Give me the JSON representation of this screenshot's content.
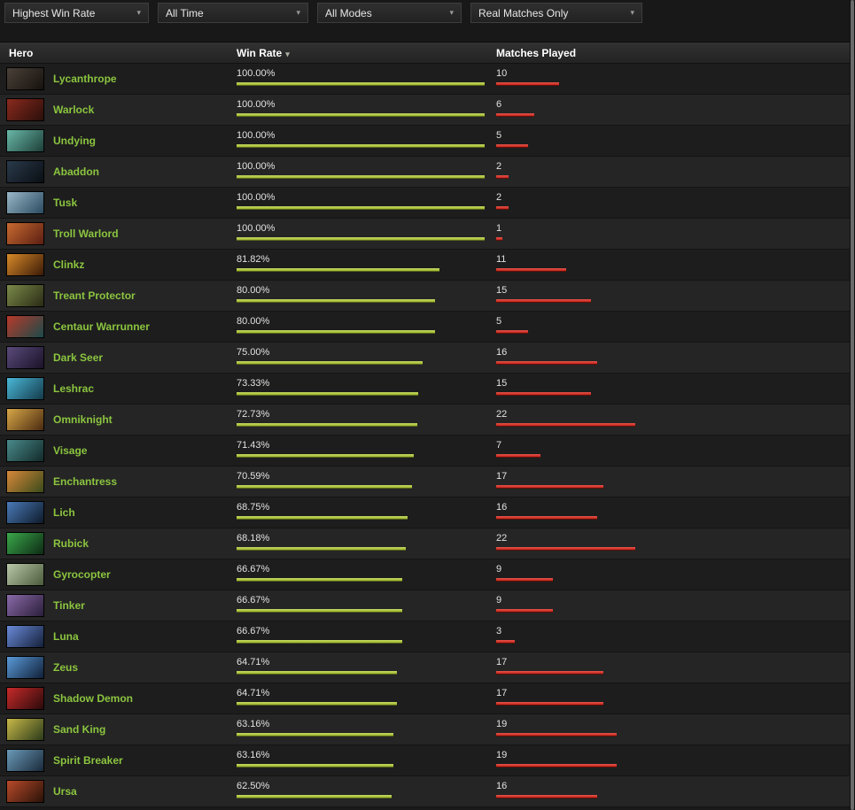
{
  "filters": [
    {
      "label": "Highest Win Rate"
    },
    {
      "label": "All Time"
    },
    {
      "label": "All Modes"
    },
    {
      "label": "Real Matches Only"
    }
  ],
  "table": {
    "columns": {
      "hero": "Hero",
      "win_rate": "Win Rate",
      "matches": "Matches Played"
    },
    "sort_indicator": "▾",
    "sorted_by": "Win Rate",
    "max_matches": 22,
    "rows": [
      {
        "hero": "Lycanthrope",
        "win_rate": "100.00%",
        "win_rate_value": 100.0,
        "matches": 10,
        "icon_colors": [
          "#4a4038",
          "#17120e"
        ]
      },
      {
        "hero": "Warlock",
        "win_rate": "100.00%",
        "win_rate_value": 100.0,
        "matches": 6,
        "icon_colors": [
          "#8a2a1e",
          "#2a0f0a"
        ]
      },
      {
        "hero": "Undying",
        "win_rate": "100.00%",
        "win_rate_value": 100.0,
        "matches": 5,
        "icon_colors": [
          "#69b8a8",
          "#1d3f38"
        ]
      },
      {
        "hero": "Abaddon",
        "win_rate": "100.00%",
        "win_rate_value": 100.0,
        "matches": 2,
        "icon_colors": [
          "#2a3a4a",
          "#0a0e14"
        ]
      },
      {
        "hero": "Tusk",
        "win_rate": "100.00%",
        "win_rate_value": 100.0,
        "matches": 2,
        "icon_colors": [
          "#9ab8c8",
          "#2a4a60"
        ]
      },
      {
        "hero": "Troll Warlord",
        "win_rate": "100.00%",
        "win_rate_value": 100.0,
        "matches": 1,
        "icon_colors": [
          "#c86a30",
          "#5a1e12"
        ]
      },
      {
        "hero": "Clinkz",
        "win_rate": "81.82%",
        "win_rate_value": 81.82,
        "matches": 11,
        "icon_colors": [
          "#d88a28",
          "#3a1a08"
        ]
      },
      {
        "hero": "Treant Protector",
        "win_rate": "80.00%",
        "win_rate_value": 80.0,
        "matches": 15,
        "icon_colors": [
          "#7a8a4a",
          "#2a2a14"
        ]
      },
      {
        "hero": "Centaur Warrunner",
        "win_rate": "80.00%",
        "win_rate_value": 80.0,
        "matches": 5,
        "icon_colors": [
          "#b83a2a",
          "#1a4a4a"
        ]
      },
      {
        "hero": "Dark Seer",
        "win_rate": "75.00%",
        "win_rate_value": 75.0,
        "matches": 16,
        "icon_colors": [
          "#5a4a7a",
          "#1a1228"
        ]
      },
      {
        "hero": "Leshrac",
        "win_rate": "73.33%",
        "win_rate_value": 73.33,
        "matches": 15,
        "icon_colors": [
          "#4ab8d8",
          "#143a4a"
        ]
      },
      {
        "hero": "Omniknight",
        "win_rate": "72.73%",
        "win_rate_value": 72.73,
        "matches": 22,
        "icon_colors": [
          "#d8a848",
          "#4a2a10"
        ]
      },
      {
        "hero": "Visage",
        "win_rate": "71.43%",
        "win_rate_value": 71.43,
        "matches": 7,
        "icon_colors": [
          "#4a8a8a",
          "#122a2a"
        ]
      },
      {
        "hero": "Enchantress",
        "win_rate": "70.59%",
        "win_rate_value": 70.59,
        "matches": 17,
        "icon_colors": [
          "#d8883a",
          "#3a4a1a"
        ]
      },
      {
        "hero": "Lich",
        "win_rate": "68.75%",
        "win_rate_value": 68.75,
        "matches": 16,
        "icon_colors": [
          "#4a7ab8",
          "#0e1a2a"
        ]
      },
      {
        "hero": "Rubick",
        "win_rate": "68.18%",
        "win_rate_value": 68.18,
        "matches": 22,
        "icon_colors": [
          "#3aa84a",
          "#0e2a14"
        ]
      },
      {
        "hero": "Gyrocopter",
        "win_rate": "66.67%",
        "win_rate_value": 66.67,
        "matches": 9,
        "icon_colors": [
          "#b8c8a8",
          "#4a5a3a"
        ]
      },
      {
        "hero": "Tinker",
        "win_rate": "66.67%",
        "win_rate_value": 66.67,
        "matches": 9,
        "icon_colors": [
          "#8a6aa8",
          "#2a1e3a"
        ]
      },
      {
        "hero": "Luna",
        "win_rate": "66.67%",
        "win_rate_value": 66.67,
        "matches": 3,
        "icon_colors": [
          "#6a8ad8",
          "#14203a"
        ]
      },
      {
        "hero": "Zeus",
        "win_rate": "64.71%",
        "win_rate_value": 64.71,
        "matches": 17,
        "icon_colors": [
          "#5a9ad8",
          "#102038"
        ]
      },
      {
        "hero": "Shadow Demon",
        "win_rate": "64.71%",
        "win_rate_value": 64.71,
        "matches": 17,
        "icon_colors": [
          "#c82a2a",
          "#2a0a0a"
        ]
      },
      {
        "hero": "Sand King",
        "win_rate": "63.16%",
        "win_rate_value": 63.16,
        "matches": 19,
        "icon_colors": [
          "#c8b848",
          "#2a3a1a"
        ]
      },
      {
        "hero": "Spirit Breaker",
        "win_rate": "63.16%",
        "win_rate_value": 63.16,
        "matches": 19,
        "icon_colors": [
          "#6a9ab8",
          "#1a2a3a"
        ]
      },
      {
        "hero": "Ursa",
        "win_rate": "62.50%",
        "win_rate_value": 62.5,
        "matches": 16,
        "icon_colors": [
          "#b84a2a",
          "#2a1208"
        ]
      }
    ]
  },
  "colors": {
    "hero_link_green": "#8bc53f",
    "win_bar_green": "#a9c43a",
    "matches_bar_red": "#d22b1f",
    "background": "#1a1a1a"
  }
}
